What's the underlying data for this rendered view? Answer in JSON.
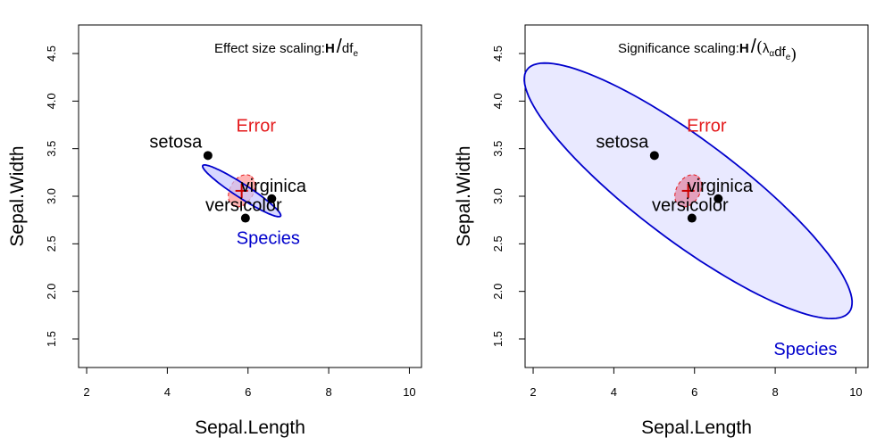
{
  "chart_data": [
    {
      "type": "scatter",
      "panel": "left",
      "title_prefix": "Effect size scaling:",
      "title_parts": [
        {
          "text": "H",
          "style": "bold"
        },
        {
          "text": "/",
          "style": "slash"
        },
        {
          "text": "df",
          "style": "normal"
        },
        {
          "text": "e",
          "style": "sub"
        }
      ],
      "xlabel": "Sepal.Length",
      "ylabel": "Sepal.Width",
      "xlim": [
        1.8,
        10.3
      ],
      "ylim": [
        1.2,
        4.8
      ],
      "xticks": [
        "2",
        "4",
        "6",
        "8",
        "10"
      ],
      "yticks": [
        "1.5",
        "2.0",
        "2.5",
        "3.0",
        "3.5",
        "4.0",
        "4.5"
      ],
      "points": [
        {
          "label": "setosa",
          "x": 5.006,
          "y": 3.428
        },
        {
          "label": "versicolor",
          "x": 5.936,
          "y": 2.77
        },
        {
          "label": "virginica",
          "x": 6.588,
          "y": 2.974
        }
      ],
      "center": {
        "x": 5.843,
        "y": 3.057
      },
      "ellipses": [
        {
          "name": "Error",
          "color": "#e41a1c",
          "fill": "#ff8080",
          "dashed": true,
          "cx": 5.843,
          "cy": 3.057,
          "rx": 0.43,
          "ry": 0.29,
          "angle_deg": 60,
          "label_x": 6.2,
          "label_y": 3.68
        },
        {
          "name": "Species",
          "color": "#0000cc",
          "fill": "#c8c8ff",
          "dashed": false,
          "cx": 5.843,
          "cy": 3.057,
          "rx": 1.15,
          "ry": 0.17,
          "angle_deg": -33,
          "label_x": 6.5,
          "label_y": 2.5
        }
      ]
    },
    {
      "type": "scatter",
      "panel": "right",
      "title_prefix": "Significance scaling:",
      "title_parts": [
        {
          "text": "H",
          "style": "bold"
        },
        {
          "text": "/",
          "style": "slash"
        },
        {
          "text": "(",
          "style": "paren"
        },
        {
          "text": "λ",
          "style": "normal"
        },
        {
          "text": "α",
          "style": "sub"
        },
        {
          "text": "df",
          "style": "normal"
        },
        {
          "text": "e",
          "style": "sub"
        },
        {
          "text": ")",
          "style": "paren"
        }
      ],
      "xlabel": "Sepal.Length",
      "ylabel": "Sepal.Width",
      "xlim": [
        1.8,
        10.3
      ],
      "ylim": [
        1.2,
        4.8
      ],
      "xticks": [
        "2",
        "4",
        "6",
        "8",
        "10"
      ],
      "yticks": [
        "1.5",
        "2.0",
        "2.5",
        "3.0",
        "3.5",
        "4.0",
        "4.5"
      ],
      "points": [
        {
          "label": "setosa",
          "x": 5.006,
          "y": 3.428
        },
        {
          "label": "versicolor",
          "x": 5.936,
          "y": 2.77
        },
        {
          "label": "virginica",
          "x": 6.588,
          "y": 2.974
        }
      ],
      "center": {
        "x": 5.843,
        "y": 3.057
      },
      "ellipses": [
        {
          "name": "Species",
          "color": "#0000cc",
          "fill": "#e0e0ff",
          "dashed": false,
          "cx": 5.843,
          "cy": 3.057,
          "rx": 5.0,
          "ry": 1.25,
          "angle_deg": -37,
          "label_x": 8.75,
          "label_y": 1.33
        },
        {
          "name": "Error",
          "color": "#e41a1c",
          "fill": "#e07090",
          "dashed": true,
          "cx": 5.843,
          "cy": 3.057,
          "rx": 0.43,
          "ry": 0.29,
          "angle_deg": 60,
          "label_x": 6.3,
          "label_y": 3.68
        }
      ]
    }
  ]
}
